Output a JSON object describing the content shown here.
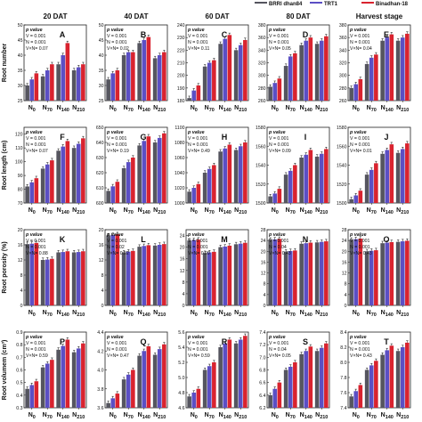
{
  "legend": {
    "entries": [
      {
        "name": "BRRI dhan84",
        "color": "#55555f"
      },
      {
        "name": "TRT1",
        "color": "#5b4fc4"
      },
      {
        "name": "Binadhan-18",
        "color": "#d9232f"
      }
    ],
    "placement": "top-right"
  },
  "column_titles": [
    "20 DAT",
    "40 DAT",
    "60 DAT",
    "80 DAT",
    "Harvest stage"
  ],
  "categories": [
    "N0",
    "N70",
    "N140",
    "N210"
  ],
  "row_ylabels": [
    "Root number",
    "Root length (cm)",
    "Root porosity (%)",
    "Root volumem (cm³)"
  ],
  "colors": {
    "series1": "#55555f",
    "series2": "#5b4fc4",
    "series3": "#d9232f",
    "axis": "#222222"
  },
  "chart_data": [
    {
      "type": "bar",
      "panel": "A",
      "pvalue_label": "p value",
      "stats": [
        "V = 0.001",
        "N = 0.001",
        "V×N= 0.07"
      ],
      "ylim": [
        25,
        50
      ],
      "yticks": [
        25,
        30,
        35,
        40,
        45,
        50
      ],
      "grid": false,
      "series": [
        {
          "values": [
            30,
            33,
            37,
            35
          ]
        },
        {
          "values": [
            32,
            35,
            40,
            36
          ]
        },
        {
          "values": [
            34,
            37,
            44,
            37
          ]
        }
      ]
    },
    {
      "type": "bar",
      "panel": "B",
      "pvalue_label": "p value",
      "stats": [
        "V = 0.001",
        "N = 0.001",
        "V×N= 0.02"
      ],
      "ylim": [
        25,
        50
      ],
      "yticks": [
        25,
        30,
        35,
        40,
        45,
        50
      ],
      "grid": false,
      "series": [
        {
          "values": [
            32,
            40,
            44,
            39
          ]
        },
        {
          "values": [
            34,
            41,
            45,
            40
          ]
        },
        {
          "values": [
            35,
            41,
            46,
            41
          ]
        }
      ]
    },
    {
      "type": "bar",
      "panel": "C",
      "pvalue_label": "p value",
      "stats": [
        "V = 0.001",
        "N = 0.001",
        "V×N= 0.11"
      ],
      "ylim": [
        180,
        240
      ],
      "yticks": [
        180,
        190,
        200,
        210,
        220,
        230,
        240
      ],
      "grid": false,
      "series": [
        {
          "values": [
            182,
            207,
            225,
            220
          ]
        },
        {
          "values": [
            188,
            210,
            229,
            224
          ]
        },
        {
          "values": [
            192,
            212,
            232,
            228
          ]
        }
      ]
    },
    {
      "type": "bar",
      "panel": "D",
      "pvalue_label": "p value",
      "stats": [
        "V = 0.001",
        "N = 0.001",
        "V×N= 0.05"
      ],
      "ylim": [
        260,
        380
      ],
      "yticks": [
        260,
        280,
        300,
        320,
        340,
        360,
        380
      ],
      "grid": false,
      "series": [
        {
          "values": [
            282,
            315,
            348,
            350
          ]
        },
        {
          "values": [
            288,
            330,
            355,
            355
          ]
        },
        {
          "values": [
            295,
            335,
            360,
            362
          ]
        }
      ]
    },
    {
      "type": "bar",
      "panel": "E",
      "pvalue_label": "p value",
      "stats": [
        "V = 0.001",
        "N = 0.001",
        "V×N= 0.04"
      ],
      "ylim": [
        260,
        380
      ],
      "yticks": [
        260,
        280,
        300,
        320,
        340,
        360,
        380
      ],
      "grid": false,
      "series": [
        {
          "values": [
            280,
            318,
            355,
            355
          ]
        },
        {
          "values": [
            286,
            328,
            360,
            360
          ]
        },
        {
          "values": [
            294,
            333,
            365,
            366
          ]
        }
      ]
    },
    {
      "type": "bar",
      "panel": "F",
      "pvalue_label": "p value",
      "stats": [
        "V = 0.001",
        "N = 0.001",
        "V×N= 0.07"
      ],
      "ylim": [
        70,
        125
      ],
      "yticks": [
        70,
        80,
        90,
        100,
        110,
        120
      ],
      "grid": false,
      "series": [
        {
          "values": [
            82,
            95,
            108,
            110
          ]
        },
        {
          "values": [
            85,
            98,
            111,
            113
          ]
        },
        {
          "values": [
            88,
            101,
            115,
            117
          ]
        }
      ]
    },
    {
      "type": "bar",
      "panel": "G",
      "pvalue_label": "p value",
      "stats": [
        "V = 0.001",
        "N = 0.001",
        "V×N= 0.19"
      ],
      "ylim": [
        600,
        650
      ],
      "yticks": [
        600,
        610,
        620,
        630,
        640,
        650
      ],
      "grid": false,
      "series": [
        {
          "values": [
            608,
            623,
            638,
            640
          ]
        },
        {
          "values": [
            611,
            627,
            641,
            643
          ]
        },
        {
          "values": [
            614,
            630,
            644,
            646
          ]
        }
      ]
    },
    {
      "type": "bar",
      "panel": "H",
      "pvalue_label": "p value",
      "stats": [
        "V = 0.001",
        "N = 0.001",
        "V×N= 0.49"
      ],
      "ylim": [
        1000,
        1100
      ],
      "yticks": [
        1000,
        1020,
        1040,
        1060,
        1080,
        1100
      ],
      "grid": false,
      "series": [
        {
          "values": [
            1015,
            1040,
            1068,
            1070
          ]
        },
        {
          "values": [
            1020,
            1045,
            1072,
            1075
          ]
        },
        {
          "values": [
            1025,
            1050,
            1077,
            1080
          ]
        }
      ]
    },
    {
      "type": "bar",
      "panel": "I",
      "pvalue_label": "p value",
      "stats": [
        "V = 0.001",
        "N = 0.001",
        "V×N= 0.09"
      ],
      "ylim": [
        1500,
        1580
      ],
      "yticks": [
        1500,
        1520,
        1540,
        1560,
        1580
      ],
      "grid": false,
      "series": [
        {
          "values": [
            1507,
            1530,
            1548,
            1549
          ]
        },
        {
          "values": [
            1510,
            1534,
            1551,
            1552
          ]
        },
        {
          "values": [
            1515,
            1540,
            1556,
            1557
          ]
        }
      ]
    },
    {
      "type": "bar",
      "panel": "J",
      "pvalue_label": "p value",
      "stats": [
        "V = 0.001",
        "N = 0.001",
        "V×N= 0.01"
      ],
      "ylim": [
        1500,
        1580
      ],
      "yticks": [
        1500,
        1520,
        1540,
        1560,
        1580
      ],
      "grid": false,
      "series": [
        {
          "values": [
            1504,
            1530,
            1552,
            1553
          ]
        },
        {
          "values": [
            1508,
            1535,
            1556,
            1557
          ]
        },
        {
          "values": [
            1513,
            1542,
            1562,
            1563
          ]
        }
      ]
    },
    {
      "type": "bar",
      "panel": "K",
      "pvalue_label": "p value",
      "stats": [
        "V = 0.001",
        "N = 0.001",
        "V×N= 0.88"
      ],
      "ylim": [
        0,
        20
      ],
      "yticks": [
        0,
        4,
        8,
        12,
        16,
        20
      ],
      "grid": false,
      "series": [
        {
          "values": [
            16.2,
            12.0,
            14.0,
            14.0
          ]
        },
        {
          "values": [
            16.3,
            12.1,
            14.1,
            14.1
          ]
        },
        {
          "values": [
            16.5,
            12.3,
            14.3,
            14.3
          ]
        }
      ]
    },
    {
      "type": "bar",
      "panel": "L",
      "pvalue_label": "p value",
      "stats": [
        "V = 0.001",
        "N = 0.02",
        "V×N= 0.02"
      ],
      "ylim": [
        0,
        20
      ],
      "yticks": [
        0,
        4,
        8,
        12,
        16,
        20
      ],
      "grid": false,
      "series": [
        {
          "values": [
            18.5,
            14.0,
            15.5,
            15.8
          ]
        },
        {
          "values": [
            18.6,
            14.2,
            15.7,
            16.0
          ]
        },
        {
          "values": [
            18.8,
            14.4,
            15.9,
            16.2
          ]
        }
      ]
    },
    {
      "type": "bar",
      "panel": "M",
      "pvalue_label": "p value",
      "stats": [
        "V = 0.001",
        "N = 0.001",
        "V×N= 0.09"
      ],
      "ylim": [
        0,
        26
      ],
      "yticks": [
        0,
        4,
        8,
        12,
        16,
        20,
        24
      ],
      "grid": false,
      "series": [
        {
          "values": [
            22.3,
            18.0,
            20.0,
            21.0
          ]
        },
        {
          "values": [
            22.4,
            18.2,
            20.2,
            21.2
          ]
        },
        {
          "values": [
            22.6,
            18.4,
            20.5,
            21.5
          ]
        }
      ]
    },
    {
      "type": "bar",
      "panel": "N",
      "pvalue_label": "p value",
      "stats": [
        "V = 0.001",
        "N = 0.04",
        "V×N= 0.43"
      ],
      "ylim": [
        0,
        28
      ],
      "yticks": [
        0,
        4,
        8,
        12,
        16,
        20,
        24,
        28
      ],
      "grid": false,
      "series": [
        {
          "values": [
            24.3,
            19.9,
            22.8,
            23.3
          ]
        },
        {
          "values": [
            24.4,
            20.1,
            23.0,
            23.5
          ]
        },
        {
          "values": [
            24.6,
            20.3,
            23.2,
            23.7
          ]
        }
      ]
    },
    {
      "type": "bar",
      "panel": "O",
      "pvalue_label": "p value",
      "stats": [
        "V = 0.001",
        "N = 0.001",
        "V×N= 0.43"
      ],
      "ylim": [
        0,
        28
      ],
      "yticks": [
        0,
        4,
        8,
        12,
        16,
        20,
        24,
        28
      ],
      "grid": false,
      "series": [
        {
          "values": [
            24.3,
            20.0,
            23.0,
            23.5
          ]
        },
        {
          "values": [
            24.5,
            20.2,
            23.2,
            23.7
          ]
        },
        {
          "values": [
            24.7,
            20.4,
            23.4,
            23.9
          ]
        }
      ]
    },
    {
      "type": "bar",
      "panel": "P",
      "pvalue_label": "p value",
      "stats": [
        "V = 0.001",
        "N = 0.001",
        "V×N= 0.59"
      ],
      "ylim": [
        0.3,
        0.9
      ],
      "yticks": [
        0.3,
        0.4,
        0.5,
        0.6,
        0.7,
        0.8,
        0.9
      ],
      "grid": false,
      "series": [
        {
          "values": [
            0.45,
            0.62,
            0.76,
            0.74
          ]
        },
        {
          "values": [
            0.48,
            0.65,
            0.79,
            0.77
          ]
        },
        {
          "values": [
            0.51,
            0.68,
            0.84,
            0.81
          ]
        }
      ]
    },
    {
      "type": "bar",
      "panel": "Q",
      "pvalue_label": "p value",
      "stats": [
        "V = 0.001",
        "N = 0.001",
        "V×N= 0.47"
      ],
      "ylim": [
        3.6,
        4.4
      ],
      "yticks": [
        3.6,
        3.8,
        4.0,
        4.2,
        4.4
      ],
      "grid": false,
      "series": [
        {
          "values": [
            3.65,
            3.9,
            4.15,
            4.16
          ]
        },
        {
          "values": [
            3.7,
            3.95,
            4.2,
            4.22
          ]
        },
        {
          "values": [
            3.75,
            4.0,
            4.25,
            4.27
          ]
        }
      ]
    },
    {
      "type": "bar",
      "panel": "R",
      "pvalue_label": "p value",
      "stats": [
        "V = 0.001",
        "N = 0.001",
        "V×N= 0.59"
      ],
      "ylim": [
        4.6,
        5.6
      ],
      "yticks": [
        4.6,
        4.8,
        5.0,
        5.2,
        5.4,
        5.6
      ],
      "grid": false,
      "series": [
        {
          "values": [
            4.75,
            5.1,
            5.4,
            5.45
          ]
        },
        {
          "values": [
            4.8,
            5.15,
            5.45,
            5.5
          ]
        },
        {
          "values": [
            4.85,
            5.2,
            5.5,
            5.55
          ]
        }
      ]
    },
    {
      "type": "bar",
      "panel": "S",
      "pvalue_label": "p value",
      "stats": [
        "V = 0.001",
        "N = 0.04",
        "V×N= 0.05"
      ],
      "ylim": [
        6.2,
        7.4
      ],
      "yticks": [
        6.2,
        6.4,
        6.6,
        6.8,
        7.0,
        7.2,
        7.4
      ],
      "grid": false,
      "series": [
        {
          "values": [
            6.4,
            6.8,
            7.05,
            7.1
          ]
        },
        {
          "values": [
            6.5,
            6.85,
            7.1,
            7.15
          ]
        },
        {
          "values": [
            6.6,
            6.92,
            7.17,
            7.22
          ]
        }
      ]
    },
    {
      "type": "bar",
      "panel": "T",
      "pvalue_label": "p value",
      "stats": [
        "V = 0.001",
        "N = 0.001",
        "V×N= 0.43"
      ],
      "ylim": [
        7.4,
        8.4
      ],
      "yticks": [
        7.4,
        7.6,
        7.8,
        8.0,
        8.2,
        8.4
      ],
      "grid": false,
      "series": [
        {
          "values": [
            7.55,
            7.9,
            8.1,
            8.15
          ]
        },
        {
          "values": [
            7.62,
            7.96,
            8.16,
            8.2
          ]
        },
        {
          "values": [
            7.7,
            8.02,
            8.22,
            8.26
          ]
        }
      ]
    }
  ]
}
